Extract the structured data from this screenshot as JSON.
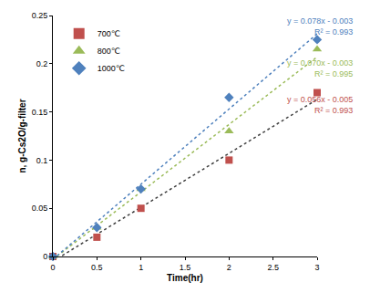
{
  "chart_data": {
    "type": "scatter",
    "x_label": "Time(hr)",
    "y_label": "n, g-Cs2O/g-filter",
    "xlim": [
      0,
      3
    ],
    "xticks": [
      0,
      0.5,
      1,
      1.5,
      2,
      2.5,
      3
    ],
    "ylim": [
      0,
      0.25
    ],
    "yticks": [
      0,
      0.05,
      0.1,
      0.15,
      0.2,
      0.25
    ],
    "grid": false,
    "legend": "top left",
    "series": [
      {
        "name": "700℃",
        "color": "#c0504d",
        "marker": "square",
        "x": [
          0,
          0.5,
          1,
          2,
          3
        ],
        "values": [
          0,
          0.02,
          0.05,
          0.1,
          0.17
        ],
        "trendline": {
          "slope": 0.056,
          "intercept": -0.005,
          "label": "y = 0.056x - 0.005",
          "r2_label": "R² = 0.993",
          "color": "#404040",
          "line_style": "dot"
        }
      },
      {
        "name": "800℃",
        "color": "#9bbb59",
        "marker": "triangle-up",
        "x": [
          0,
          0.5,
          1,
          2,
          3
        ],
        "values": [
          0,
          0.03,
          0.07,
          0.13,
          0.215
        ],
        "trendline": {
          "slope": 0.07,
          "intercept": -0.003,
          "label": "y = 0.070x - 0.003",
          "r2_label": "R² = 0.995",
          "color": "#9bbb59",
          "line_style": "dot"
        }
      },
      {
        "name": "1000℃",
        "color": "#4f81bd",
        "marker": "diamond",
        "x": [
          0,
          0.5,
          1,
          2,
          3
        ],
        "values": [
          0,
          0.03,
          0.07,
          0.165,
          0.225
        ],
        "trendline": {
          "slope": 0.078,
          "intercept": -0.003,
          "label": "y = 0.078x - 0.003",
          "r2_label": "R² = 0.993",
          "color": "#4f81bd",
          "line_style": "dot"
        }
      }
    ]
  }
}
